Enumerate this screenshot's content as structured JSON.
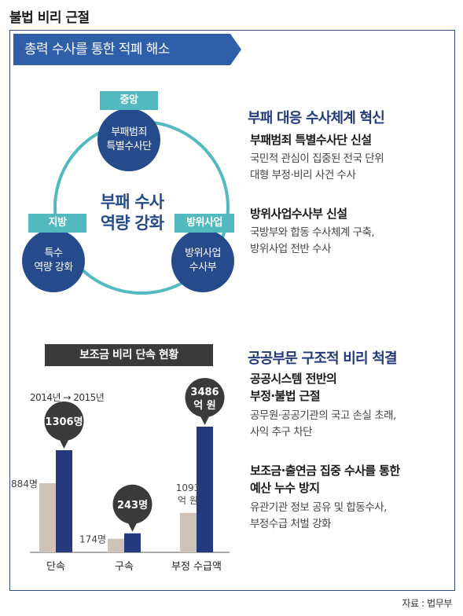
{
  "title": "불법 비리 근절",
  "section_title": "총력 수사를 통한 적폐 해소",
  "diagram": {
    "center_line1": "부패 수사",
    "center_line2": "역량 강화",
    "nodes": [
      {
        "tag": "중앙",
        "line1": "부패범죄",
        "line2": "특별수사단"
      },
      {
        "tag": "지방",
        "line1": "특수",
        "line2": "역량 강화"
      },
      {
        "tag": "방위사업",
        "line1": "방위사업",
        "line2": "수사부"
      }
    ]
  },
  "block1": {
    "heading": "부패 대응 수사체계 혁신",
    "items": [
      {
        "sub": "부패범죄 특별수사단 신설",
        "body_line1": "국민적 관심이 집중된 전국 단위",
        "body_line2": "대형 부정·비리 사건 수사"
      },
      {
        "sub": "방위사업수사부 신설",
        "body_line1": "국방부와 합동 수사체계 구축,",
        "body_line2": "방위사업 전반 수사"
      }
    ]
  },
  "block2": {
    "heading": "공공부문 구조적 비리 척결",
    "items": [
      {
        "sub_line1": "공공시스템 전반의",
        "sub_line2": "부정·불법 근절",
        "body_line1": "공무원·공공기관의 국고 손실 초래,",
        "body_line2": "사익 추구 차단"
      },
      {
        "sub_line1": "보조금·출연금 집중 수사를 통한",
        "sub_line2": "예산 누수 방지",
        "body_line1": "유관기관 정보 공유 및 합동수사,",
        "body_line2": "부정수급 처벌 강화"
      }
    ]
  },
  "chart_title": "보조금 비리 단속 현황",
  "year_range": "2014년 → 2015년",
  "source": "자료 : 법무부",
  "colors": {
    "y2014": "#cfc3b8",
    "y2015": "#253a7c",
    "bubble": "#3a3a3a"
  },
  "chart_data": {
    "type": "bar",
    "categories": [
      "단속",
      "구속",
      "부정 수급액"
    ],
    "series": [
      {
        "values": [
          884,
          174,
          1093
        ]
      },
      {
        "values": [
          1306,
          243,
          3486
        ]
      }
    ],
    "data_labels": [
      [
        "884명",
        "174명",
        "1093 억 원"
      ],
      [
        "1306명",
        "243명",
        "3486 억 원"
      ]
    ],
    "title": "보조금 비리 단속 현황"
  }
}
